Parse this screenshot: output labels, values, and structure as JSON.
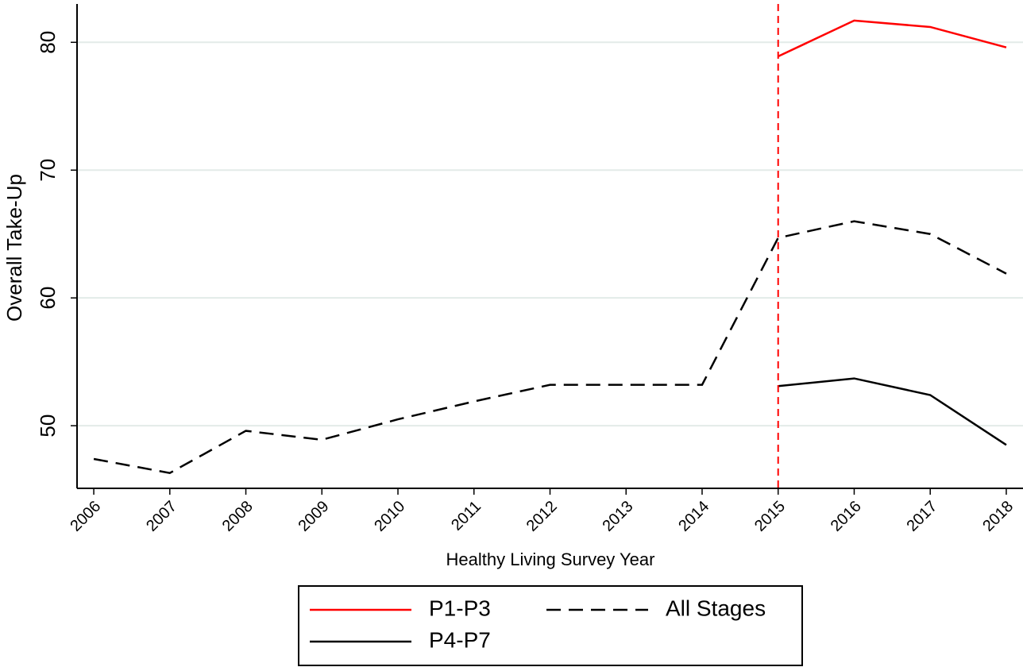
{
  "chart_data": {
    "type": "line",
    "xlabel": "Healthy Living Survey Year",
    "ylabel": "Overall Take-Up",
    "x": [
      2006,
      2007,
      2008,
      2009,
      2010,
      2011,
      2012,
      2013,
      2014,
      2015,
      2016,
      2017,
      2018
    ],
    "series": [
      {
        "name": "P1-P3",
        "color": "#ff0000",
        "dash": false,
        "values": [
          null,
          null,
          null,
          null,
          null,
          null,
          null,
          null,
          null,
          78.9,
          81.7,
          81.2,
          79.6
        ]
      },
      {
        "name": "All Stages",
        "color": "#000000",
        "dash": true,
        "values": [
          47.4,
          46.3,
          49.6,
          48.9,
          50.5,
          51.9,
          53.2,
          53.2,
          53.2,
          64.7,
          66.0,
          65.0,
          61.9
        ]
      },
      {
        "name": "P4-P7",
        "color": "#000000",
        "dash": false,
        "values": [
          null,
          null,
          null,
          null,
          null,
          null,
          null,
          null,
          null,
          53.1,
          53.7,
          52.4,
          48.5
        ]
      }
    ],
    "vline": {
      "x": 2015,
      "color": "#ff0000"
    },
    "xlim": [
      2005.78,
      2018.22
    ],
    "xticks": [
      2006,
      2007,
      2008,
      2009,
      2010,
      2011,
      2012,
      2013,
      2014,
      2015,
      2016,
      2017,
      2018
    ],
    "ylim": [
      45.1,
      83
    ],
    "yticks": [
      50,
      60,
      70,
      80
    ],
    "grid": true
  }
}
